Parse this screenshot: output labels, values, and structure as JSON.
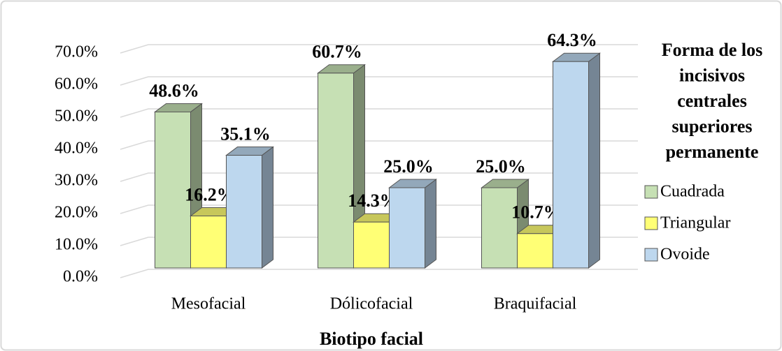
{
  "chart_data": {
    "type": "bar3d",
    "x_label": "Biotipo facial",
    "legend_title": [
      "Forma de los",
      "incisivos",
      "centrales",
      "superiores",
      "permanente"
    ],
    "categories": [
      "Mesofacial",
      "Dólicofacial",
      "Braquifacial"
    ],
    "series": [
      {
        "name": "Cuadrada",
        "color": "#c6e0b4",
        "values": [
          48.6,
          60.7,
          25.0
        ],
        "value_labels": [
          "48.6%",
          "60.7%",
          "25.0%"
        ]
      },
      {
        "name": "Triangular",
        "color": "#ffff75",
        "values": [
          16.2,
          14.3,
          10.7
        ],
        "value_labels": [
          "16.2%",
          "14.3%",
          "10.7%"
        ]
      },
      {
        "name": "Ovoide",
        "color": "#bdd7ee",
        "values": [
          35.1,
          25.0,
          64.3
        ],
        "value_labels": [
          "35.1%",
          "25.0%",
          "64.3%"
        ]
      }
    ],
    "ylim": [
      0,
      70
    ],
    "yticks": [
      {
        "value": 0,
        "label": "0.0%"
      },
      {
        "value": 10,
        "label": "10.0%"
      },
      {
        "value": 20,
        "label": "20.0%"
      },
      {
        "value": 30,
        "label": "30.0%"
      },
      {
        "value": 40,
        "label": "40.0%"
      },
      {
        "value": 50,
        "label": "50.0%"
      },
      {
        "value": 60,
        "label": "60.0%"
      },
      {
        "value": 70,
        "label": "70.0%"
      }
    ],
    "grid": true,
    "legend": "right"
  }
}
